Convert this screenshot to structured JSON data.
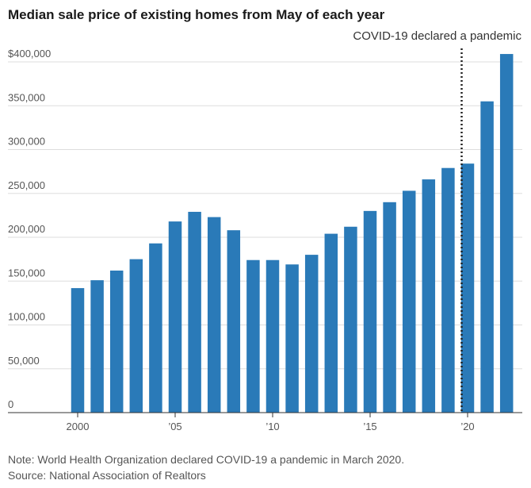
{
  "chart_data": {
    "type": "bar",
    "title": "Median sale price of existing homes from May of each year",
    "xlabel": "",
    "ylabel": "",
    "x": [
      2000,
      2001,
      2002,
      2003,
      2004,
      2005,
      2006,
      2007,
      2008,
      2009,
      2010,
      2011,
      2012,
      2013,
      2014,
      2015,
      2016,
      2017,
      2018,
      2019,
      2020,
      2021,
      2022
    ],
    "values": [
      142000,
      151000,
      162000,
      175000,
      193000,
      218000,
      229000,
      223000,
      208000,
      174000,
      174000,
      169000,
      180000,
      204000,
      212000,
      230000,
      240000,
      253000,
      266000,
      279000,
      284000,
      355000,
      409000
    ],
    "ylim": [
      0,
      420000
    ],
    "y_ticks": [
      {
        "value": 0,
        "label": "0"
      },
      {
        "value": 50000,
        "label": "50,000"
      },
      {
        "value": 100000,
        "label": "100,000"
      },
      {
        "value": 150000,
        "label": "150,000"
      },
      {
        "value": 200000,
        "label": "200,000"
      },
      {
        "value": 250000,
        "label": "250,000"
      },
      {
        "value": 300000,
        "label": "300,000"
      },
      {
        "value": 350000,
        "label": "350,000"
      },
      {
        "value": 400000,
        "label": "$400,000"
      }
    ],
    "x_ticks": [
      {
        "value": 2000,
        "label": "2000"
      },
      {
        "value": 2005,
        "label": "’05"
      },
      {
        "value": 2010,
        "label": "’10"
      },
      {
        "value": 2015,
        "label": "’15"
      },
      {
        "value": 2020,
        "label": "’20"
      }
    ],
    "annotation": {
      "x": 2020,
      "label": "COVID-19 declared a pandemic"
    },
    "bar_color": "#2a7ab8",
    "grid": true
  },
  "footer": {
    "note": "Note: World Health Organization declared COVID-19 a pandemic in March 2020.",
    "source": "Source: National Association of Realtors"
  }
}
